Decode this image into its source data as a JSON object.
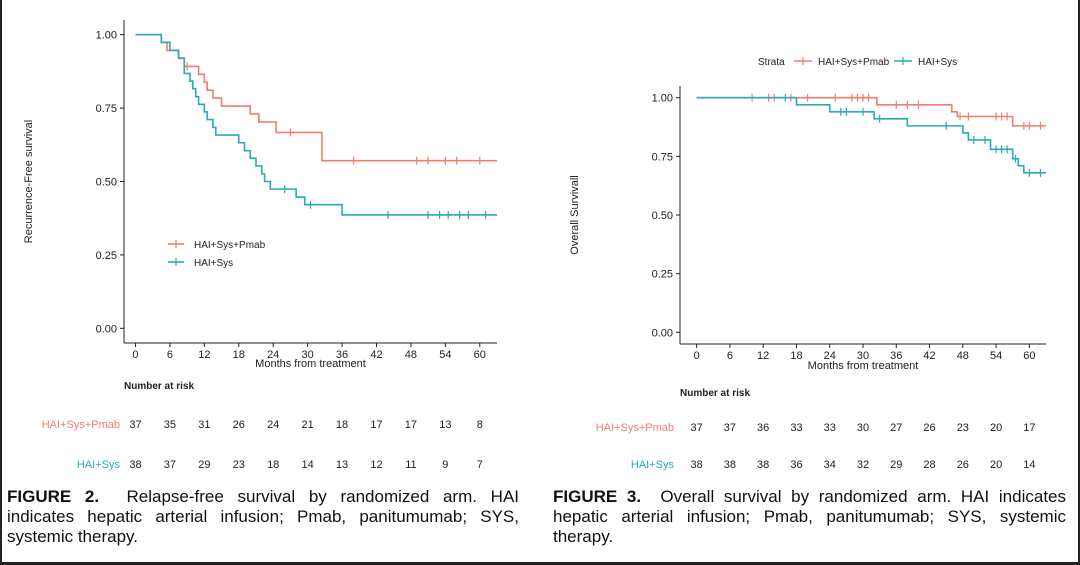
{
  "colors": {
    "pmab": "#f07f6e",
    "sys": "#2aaab8",
    "axis": "#222222"
  },
  "chart_data": [
    {
      "type": "line",
      "subtype": "kaplan-meier",
      "figure_label": "FIGURE 2.",
      "caption": "Relapse-free survival by randomized arm. HAI indicates hepatic arterial infusion; Pmab, panitumumab; SYS, systemic therapy.",
      "xlabel": "Months from treatment",
      "ylabel": "Recurrence-Free survival",
      "xlim": [
        -2,
        63
      ],
      "ylim": [
        -0.05,
        1.05
      ],
      "xticks": [
        0,
        6,
        12,
        18,
        24,
        30,
        36,
        42,
        48,
        54,
        60
      ],
      "yticks": [
        "0.00",
        "0.25",
        "0.50",
        "0.75",
        "1.00"
      ],
      "legend": {
        "position": "middle-left",
        "strata_label": ""
      },
      "series": [
        {
          "name": "HAI+Sys+Pmab",
          "color_key": "pmab",
          "steps": [
            [
              0,
              1.0
            ],
            [
              4.5,
              0.973
            ],
            [
              5.5,
              0.946
            ],
            [
              7.5,
              0.919
            ],
            [
              8.5,
              0.892
            ],
            [
              11,
              0.865
            ],
            [
              12,
              0.838
            ],
            [
              12.5,
              0.811
            ],
            [
              13.5,
              0.784
            ],
            [
              15,
              0.757
            ],
            [
              20,
              0.73
            ],
            [
              21.5,
              0.703
            ],
            [
              24.5,
              0.667
            ],
            [
              32.5,
              0.571
            ],
            [
              63,
              0.571
            ]
          ],
          "censors": [
            [
              9,
              0.892
            ],
            [
              27,
              0.667
            ],
            [
              38,
              0.571
            ],
            [
              49,
              0.571
            ],
            [
              51,
              0.571
            ],
            [
              54,
              0.571
            ],
            [
              56,
              0.571
            ],
            [
              60,
              0.571
            ]
          ]
        },
        {
          "name": "HAI+Sys",
          "color_key": "sys",
          "steps": [
            [
              0,
              1.0
            ],
            [
              4.5,
              0.974
            ],
            [
              6,
              0.947
            ],
            [
              7.5,
              0.921
            ],
            [
              8.5,
              0.868
            ],
            [
              9.5,
              0.842
            ],
            [
              10,
              0.816
            ],
            [
              10.5,
              0.789
            ],
            [
              11,
              0.763
            ],
            [
              12,
              0.737
            ],
            [
              12.5,
              0.711
            ],
            [
              13.5,
              0.684
            ],
            [
              14,
              0.658
            ],
            [
              18,
              0.632
            ],
            [
              19,
              0.605
            ],
            [
              20,
              0.579
            ],
            [
              21,
              0.553
            ],
            [
              22,
              0.526
            ],
            [
              22.5,
              0.5
            ],
            [
              23.5,
              0.474
            ],
            [
              28,
              0.447
            ],
            [
              29.5,
              0.421
            ],
            [
              36,
              0.386
            ],
            [
              63,
              0.386
            ]
          ],
          "censors": [
            [
              26,
              0.474
            ],
            [
              30.5,
              0.421
            ],
            [
              44,
              0.386
            ],
            [
              51,
              0.386
            ],
            [
              53,
              0.386
            ],
            [
              54.5,
              0.386
            ],
            [
              56.5,
              0.386
            ],
            [
              58,
              0.386
            ],
            [
              61,
              0.386
            ]
          ]
        }
      ],
      "risk_table": {
        "title": "Number at risk",
        "rows": [
          {
            "label": "HAI+Sys+Pmab",
            "color_key": "pmab",
            "values": [
              "37",
              "35",
              "31",
              "26",
              "24",
              "21",
              "18",
              "17",
              "17",
              "13",
              "8"
            ]
          },
          {
            "label": "HAI+Sys",
            "color_key": "sys",
            "values": [
              "38",
              "37",
              "29",
              "23",
              "18",
              "14",
              "13",
              "12",
              "11",
              "9",
              "7"
            ]
          }
        ]
      }
    },
    {
      "type": "line",
      "subtype": "kaplan-meier",
      "figure_label": "FIGURE 3.",
      "caption": "Overall survival by randomized arm. HAI indicates hepatic arterial infusion; Pmab, panitumumab; SYS, systemic therapy.",
      "xlabel": "Months from treatment",
      "ylabel": "Overall Survivall",
      "xlim": [
        -3,
        63
      ],
      "ylim": [
        -0.05,
        1.05
      ],
      "xticks": [
        0,
        6,
        12,
        18,
        24,
        30,
        36,
        42,
        48,
        54,
        60
      ],
      "yticks": [
        "0.00",
        "0.25",
        "0.50",
        "0.75",
        "1.00"
      ],
      "legend": {
        "position": "top",
        "strata_label": "Strata"
      },
      "series": [
        {
          "name": "HAI+Sys+Pmab",
          "color_key": "pmab",
          "steps": [
            [
              0,
              1.0
            ],
            [
              32.5,
              0.97
            ],
            [
              46,
              0.94
            ],
            [
              47,
              0.92
            ],
            [
              57,
              0.88
            ],
            [
              63,
              0.88
            ]
          ],
          "censors": [
            [
              10,
              1.0
            ],
            [
              13,
              1.0
            ],
            [
              14,
              1.0
            ],
            [
              17,
              1.0
            ],
            [
              20,
              1.0
            ],
            [
              25,
              1.0
            ],
            [
              28,
              1.0
            ],
            [
              29,
              1.0
            ],
            [
              30,
              1.0
            ],
            [
              31,
              1.0
            ],
            [
              36,
              0.97
            ],
            [
              38,
              0.97
            ],
            [
              40,
              0.97
            ],
            [
              47.5,
              0.92
            ],
            [
              49,
              0.92
            ],
            [
              54,
              0.92
            ],
            [
              55,
              0.92
            ],
            [
              56,
              0.92
            ],
            [
              59,
              0.88
            ],
            [
              60,
              0.88
            ],
            [
              62,
              0.88
            ]
          ]
        },
        {
          "name": "HAI+Sys",
          "color_key": "sys",
          "steps": [
            [
              0,
              1.0
            ],
            [
              18,
              0.97
            ],
            [
              24,
              0.94
            ],
            [
              32,
              0.91
            ],
            [
              38,
              0.88
            ],
            [
              48,
              0.85
            ],
            [
              49,
              0.82
            ],
            [
              53,
              0.78
            ],
            [
              57,
              0.74
            ],
            [
              58,
              0.71
            ],
            [
              59,
              0.68
            ],
            [
              63,
              0.68
            ]
          ],
          "censors": [
            [
              16,
              1.0
            ],
            [
              26,
              0.94
            ],
            [
              27,
              0.94
            ],
            [
              30,
              0.94
            ],
            [
              33,
              0.91
            ],
            [
              45,
              0.88
            ],
            [
              50,
              0.82
            ],
            [
              52,
              0.82
            ],
            [
              54,
              0.78
            ],
            [
              55,
              0.78
            ],
            [
              56,
              0.78
            ],
            [
              57.5,
              0.74
            ],
            [
              60,
              0.68
            ],
            [
              62,
              0.68
            ]
          ]
        }
      ],
      "risk_table": {
        "title": "Number at risk",
        "rows": [
          {
            "label": "HAI+Sys+Pmab",
            "color_key": "pmab",
            "values": [
              "37",
              "37",
              "36",
              "33",
              "33",
              "30",
              "27",
              "26",
              "23",
              "20",
              "17"
            ]
          },
          {
            "label": "HAI+Sys",
            "color_key": "sys",
            "values": [
              "38",
              "38",
              "38",
              "36",
              "34",
              "32",
              "29",
              "28",
              "26",
              "20",
              "14"
            ]
          }
        ]
      }
    }
  ]
}
